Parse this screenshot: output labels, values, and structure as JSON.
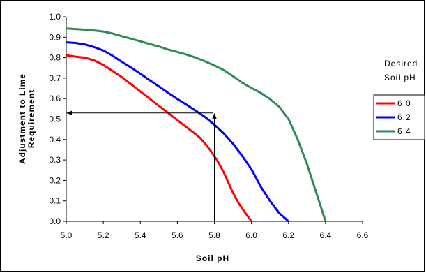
{
  "chart_data": {
    "type": "line",
    "xlabel": "Soil pH",
    "ylabel_lines": [
      "Adjustment to Lime",
      "Requirement"
    ],
    "xlim": [
      5.0,
      6.6
    ],
    "ylim": [
      0.0,
      1.0
    ],
    "x_ticks": [
      "5.0",
      "5.2",
      "5.4",
      "5.6",
      "5.8",
      "6.0",
      "6.2",
      "6.4",
      "6.6"
    ],
    "y_ticks": [
      "0.0",
      "0.1",
      "0.2",
      "0.3",
      "0.4",
      "0.5",
      "0.6",
      "0.7",
      "0.8",
      "0.9",
      "1.0"
    ],
    "grid": false,
    "legend": {
      "title_lines": [
        "Desired",
        "Soil pH"
      ],
      "placement": "right"
    },
    "series": [
      {
        "name": "6.0",
        "color": "#ff0000",
        "points": [
          [
            5.0,
            0.812
          ],
          [
            5.05,
            0.805
          ],
          [
            5.1,
            0.8
          ],
          [
            5.15,
            0.787
          ],
          [
            5.2,
            0.765
          ],
          [
            5.25,
            0.735
          ],
          [
            5.3,
            0.705
          ],
          [
            5.35,
            0.67
          ],
          [
            5.4,
            0.635
          ],
          [
            5.45,
            0.6
          ],
          [
            5.5,
            0.565
          ],
          [
            5.55,
            0.53
          ],
          [
            5.6,
            0.495
          ],
          [
            5.65,
            0.46
          ],
          [
            5.7,
            0.425
          ],
          [
            5.72,
            0.41
          ],
          [
            5.75,
            0.38
          ],
          [
            5.78,
            0.345
          ],
          [
            5.8,
            0.318
          ],
          [
            5.82,
            0.29
          ],
          [
            5.85,
            0.24
          ],
          [
            5.88,
            0.18
          ],
          [
            5.9,
            0.14
          ],
          [
            5.93,
            0.09
          ],
          [
            5.96,
            0.05
          ],
          [
            6.0,
            0.0
          ]
        ]
      },
      {
        "name": "6.2",
        "color": "#0000ff",
        "points": [
          [
            5.0,
            0.875
          ],
          [
            5.05,
            0.872
          ],
          [
            5.1,
            0.865
          ],
          [
            5.15,
            0.852
          ],
          [
            5.2,
            0.835
          ],
          [
            5.25,
            0.81
          ],
          [
            5.3,
            0.78
          ],
          [
            5.35,
            0.752
          ],
          [
            5.4,
            0.722
          ],
          [
            5.45,
            0.69
          ],
          [
            5.5,
            0.66
          ],
          [
            5.55,
            0.628
          ],
          [
            5.6,
            0.598
          ],
          [
            5.65,
            0.57
          ],
          [
            5.7,
            0.54
          ],
          [
            5.75,
            0.51
          ],
          [
            5.8,
            0.472
          ],
          [
            5.85,
            0.43
          ],
          [
            5.9,
            0.38
          ],
          [
            5.95,
            0.32
          ],
          [
            6.0,
            0.255
          ],
          [
            6.05,
            0.17
          ],
          [
            6.1,
            0.1
          ],
          [
            6.15,
            0.04
          ],
          [
            6.2,
            0.0
          ]
        ]
      },
      {
        "name": "6.4",
        "color": "#2e8b57",
        "points": [
          [
            5.0,
            0.943
          ],
          [
            5.05,
            0.94
          ],
          [
            5.1,
            0.937
          ],
          [
            5.15,
            0.933
          ],
          [
            5.2,
            0.928
          ],
          [
            5.25,
            0.918
          ],
          [
            5.3,
            0.905
          ],
          [
            5.35,
            0.893
          ],
          [
            5.4,
            0.88
          ],
          [
            5.45,
            0.867
          ],
          [
            5.5,
            0.855
          ],
          [
            5.55,
            0.84
          ],
          [
            5.6,
            0.828
          ],
          [
            5.65,
            0.815
          ],
          [
            5.7,
            0.8
          ],
          [
            5.75,
            0.782
          ],
          [
            5.8,
            0.762
          ],
          [
            5.85,
            0.74
          ],
          [
            5.9,
            0.71
          ],
          [
            5.95,
            0.678
          ],
          [
            6.0,
            0.652
          ],
          [
            6.05,
            0.628
          ],
          [
            6.1,
            0.598
          ],
          [
            6.15,
            0.56
          ],
          [
            6.2,
            0.5
          ],
          [
            6.25,
            0.4
          ],
          [
            6.3,
            0.28
          ],
          [
            6.35,
            0.14
          ],
          [
            6.4,
            0.0
          ]
        ]
      }
    ],
    "annotations": [
      {
        "type": "arrow-path",
        "color": "#000000",
        "points": [
          [
            5.8,
            0.0
          ],
          [
            5.8,
            0.53
          ],
          [
            5.0,
            0.53
          ]
        ],
        "arrowheads": [
          "middle",
          "end"
        ]
      }
    ]
  }
}
